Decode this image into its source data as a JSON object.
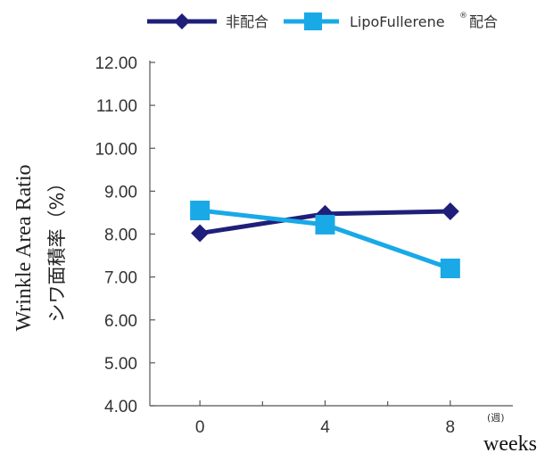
{
  "chart_data": {
    "type": "line",
    "categories": [
      "0",
      "4",
      "8"
    ],
    "x": [
      0,
      4,
      8
    ],
    "series": [
      {
        "name": "非配合",
        "legend_main": "非配合",
        "legend_sup": "",
        "color": "#1f1f7a",
        "marker": "diamond",
        "values": [
          8.02,
          8.47,
          8.53
        ]
      },
      {
        "name": "LipoFullerene® 配合",
        "legend_main": "LipoFullerene",
        "legend_sup": "®",
        "legend_tail": "配合",
        "color": "#19a9e6",
        "marker": "square",
        "values": [
          8.55,
          8.22,
          7.2
        ]
      }
    ],
    "y_ticks": [
      "12.00",
      "11.00",
      "10.00",
      "9.00",
      "8.00",
      "7.00",
      "6.00",
      "5.00",
      "4.00"
    ],
    "ylim": [
      4,
      12
    ],
    "xlim": [
      -1.6,
      10.0
    ],
    "ylabel_en": "Wrinkle Area Ratio",
    "ylabel_jp": "シワ面積率（%）",
    "x_unit_jp": "(週)",
    "x_unit_en": "weeks",
    "grid": false,
    "legend_position": "top"
  }
}
